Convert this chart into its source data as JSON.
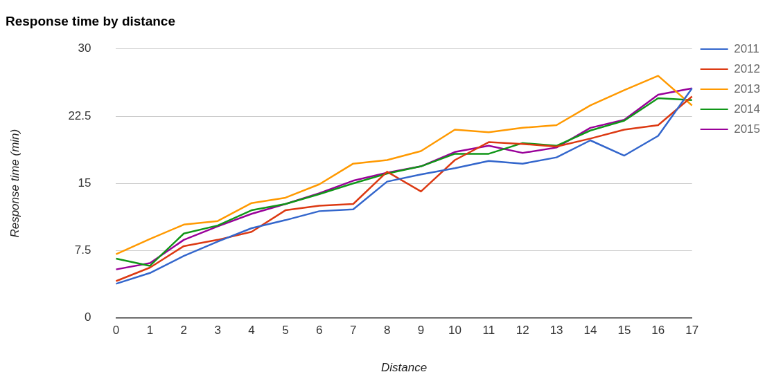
{
  "chart_data": {
    "type": "line",
    "title": "Response time by distance",
    "xlabel": "Distance",
    "ylabel": "Response time (min)",
    "categories": [
      "0",
      "1",
      "2",
      "3",
      "4",
      "5",
      "6",
      "7",
      "8",
      "9",
      "10",
      "11",
      "12",
      "13",
      "14",
      "15",
      "16",
      "17"
    ],
    "series": [
      {
        "name": "2011",
        "color": "#3366cc",
        "values": [
          3.8,
          5.0,
          6.9,
          8.5,
          10.0,
          10.9,
          11.9,
          12.1,
          15.2,
          16.0,
          16.7,
          17.5,
          17.2,
          17.9,
          19.8,
          18.1,
          20.3,
          25.6
        ]
      },
      {
        "name": "2012",
        "color": "#dc3912",
        "values": [
          4.1,
          5.6,
          8.0,
          8.7,
          9.6,
          12.0,
          12.5,
          12.7,
          16.3,
          14.1,
          17.6,
          19.6,
          19.4,
          19.1,
          20.0,
          21.0,
          21.5,
          24.7
        ]
      },
      {
        "name": "2013",
        "color": "#ff9900",
        "values": [
          7.1,
          8.8,
          10.4,
          10.8,
          12.8,
          13.4,
          14.9,
          17.2,
          17.6,
          18.6,
          21.0,
          20.7,
          21.2,
          21.5,
          23.7,
          25.4,
          27.0,
          23.7
        ]
      },
      {
        "name": "2014",
        "color": "#109618",
        "values": [
          6.6,
          5.8,
          9.4,
          10.3,
          12.0,
          12.7,
          13.8,
          15.0,
          16.1,
          16.9,
          18.3,
          18.3,
          19.5,
          19.2,
          20.9,
          22.0,
          24.5,
          24.3
        ]
      },
      {
        "name": "2015",
        "color": "#990099",
        "values": [
          5.4,
          6.1,
          8.7,
          10.2,
          11.6,
          12.7,
          13.9,
          15.3,
          16.2,
          16.9,
          18.5,
          19.2,
          18.4,
          19.0,
          21.2,
          22.1,
          24.9,
          25.6
        ]
      }
    ],
    "ylim": [
      0,
      30
    ],
    "yticks": [
      0,
      7.5,
      15,
      22.5,
      30
    ],
    "grid": "y",
    "legend": "right",
    "marker": "none",
    "line_style": "solid"
  }
}
